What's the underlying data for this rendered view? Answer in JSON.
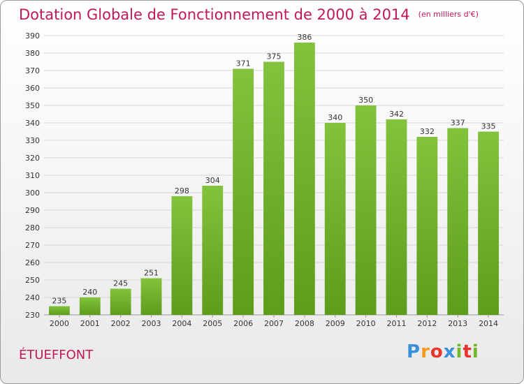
{
  "header": {
    "title": "Dotation Globale de Fonctionnement de 2000 à 2014",
    "subtitle": "(en milliers d'€)"
  },
  "footer": {
    "commune": "ÉTUEFFONT",
    "logo_letters": [
      "P",
      "r",
      "o",
      "x",
      "i",
      "t",
      "i"
    ],
    "logo_colors": [
      "#3a8fd8",
      "#f39a1e",
      "#e8342a",
      "#3a8fd8",
      "#72b62a",
      "#e8342a",
      "#72b62a"
    ]
  },
  "chart_data": {
    "type": "bar",
    "categories": [
      "2000",
      "2001",
      "2002",
      "2003",
      "2004",
      "2005",
      "2006",
      "2007",
      "2008",
      "2009",
      "2010",
      "2011",
      "2012",
      "2013",
      "2014"
    ],
    "values": [
      235,
      240,
      245,
      251,
      298,
      304,
      371,
      375,
      386,
      340,
      350,
      342,
      332,
      337,
      335
    ],
    "value_labels": [
      "235",
      "240",
      "245",
      "251",
      "298",
      "304",
      "371",
      "375",
      "386",
      "340",
      "350",
      "342",
      "332",
      "337",
      "335"
    ],
    "title": "Dotation Globale de Fonctionnement de 2000 à 2014",
    "subtitle": "(en milliers d'€)",
    "ylim": [
      230,
      390
    ],
    "yticks": [
      "230",
      "240",
      "250",
      "260",
      "270",
      "280",
      "290",
      "300",
      "310",
      "320",
      "330",
      "340",
      "350",
      "360",
      "370",
      "380",
      "390"
    ],
    "grid": true,
    "bar_color": "#82c23c",
    "bar_color_dark": "#5e9c1c"
  }
}
